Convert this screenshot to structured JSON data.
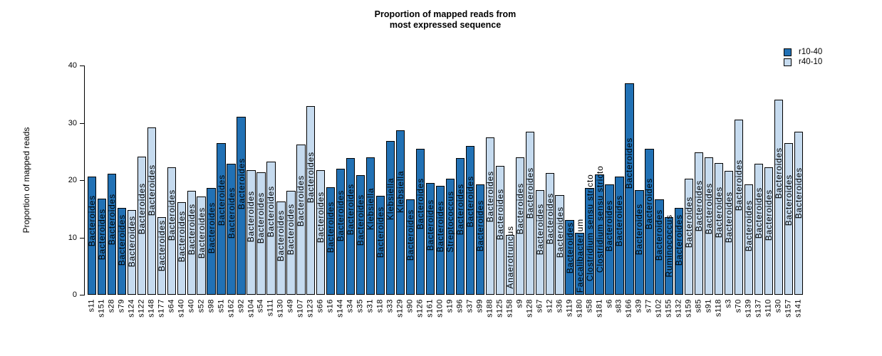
{
  "title": {
    "line1": "Proportion of mapped reads from",
    "line2": "most expressed sequence"
  },
  "y_axis": {
    "label": "Proportion of mapped reads",
    "ticks": [
      0,
      10,
      20,
      30,
      40
    ],
    "max": 40
  },
  "legend": {
    "items": [
      {
        "label": "r10-40",
        "color": "#2171b5"
      },
      {
        "label": "r40-10",
        "color": "#c6dbef"
      }
    ]
  },
  "chart_data": {
    "type": "bar",
    "title": "Proportion of mapped reads from most expressed sequence",
    "xlabel": "",
    "ylabel": "Proportion of mapped reads",
    "ylim": [
      0,
      40
    ],
    "grid": false,
    "legend_position": "top-right",
    "bar_border_color": "#000000",
    "groups": {
      "r10-40": "#2171b5",
      "r40-10": "#c6dbef"
    },
    "bars": [
      {
        "sample": "s11",
        "taxon": "Bacteroides",
        "group": "r10-40",
        "value": 20.6
      },
      {
        "sample": "s151",
        "taxon": "Bacteroides",
        "group": "r10-40",
        "value": 16.8
      },
      {
        "sample": "s28",
        "taxon": "Bacteroides",
        "group": "r10-40",
        "value": 21.1
      },
      {
        "sample": "s79",
        "taxon": "Bacteroides",
        "group": "r10-40",
        "value": 15.1
      },
      {
        "sample": "s124",
        "taxon": "Bacteroides",
        "group": "r40-10",
        "value": 14.8
      },
      {
        "sample": "s122",
        "taxon": "Bacteroides",
        "group": "r40-10",
        "value": 24.1
      },
      {
        "sample": "s148",
        "taxon": "Bacteroides",
        "group": "r40-10",
        "value": 29.2
      },
      {
        "sample": "s177",
        "taxon": "Bacteroides",
        "group": "r40-10",
        "value": 13.6
      },
      {
        "sample": "s64",
        "taxon": "Bacteroides",
        "group": "r40-10",
        "value": 22.3
      },
      {
        "sample": "s140",
        "taxon": "Bacteroides",
        "group": "r40-10",
        "value": 16.1
      },
      {
        "sample": "s40",
        "taxon": "Bacteroides",
        "group": "r40-10",
        "value": 18.2
      },
      {
        "sample": "s52",
        "taxon": "Bacteroides",
        "group": "r40-10",
        "value": 17.1
      },
      {
        "sample": "s98",
        "taxon": "Bacteroides",
        "group": "r10-40",
        "value": 18.6
      },
      {
        "sample": "s51",
        "taxon": "Bacteroides",
        "group": "r10-40",
        "value": 26.5
      },
      {
        "sample": "s162",
        "taxon": "Bacteroides",
        "group": "r10-40",
        "value": 22.8
      },
      {
        "sample": "s92",
        "taxon": "Bacteroides",
        "group": "r10-40",
        "value": 31.0
      },
      {
        "sample": "s104",
        "taxon": "Bacteroides",
        "group": "r40-10",
        "value": 21.8
      },
      {
        "sample": "s54",
        "taxon": "Bacteroides",
        "group": "r40-10",
        "value": 21.4
      },
      {
        "sample": "s111",
        "taxon": "Bacteroides",
        "group": "r40-10",
        "value": 23.2
      },
      {
        "sample": "s130",
        "taxon": "Bacteroides",
        "group": "r40-10",
        "value": 16.3
      },
      {
        "sample": "s49",
        "taxon": "Bacteroides",
        "group": "r40-10",
        "value": 18.2
      },
      {
        "sample": "s107",
        "taxon": "Bacteroides",
        "group": "r40-10",
        "value": 26.2
      },
      {
        "sample": "s123",
        "taxon": "Bacteroides",
        "group": "r40-10",
        "value": 32.9
      },
      {
        "sample": "s66",
        "taxon": "Bacteroides",
        "group": "r40-10",
        "value": 21.7
      },
      {
        "sample": "s16",
        "taxon": "Bacteroides",
        "group": "r10-40",
        "value": 18.8
      },
      {
        "sample": "s144",
        "taxon": "Bacteroides",
        "group": "r10-40",
        "value": 22.0
      },
      {
        "sample": "s34",
        "taxon": "Bacteroides",
        "group": "r10-40",
        "value": 23.9
      },
      {
        "sample": "s35",
        "taxon": "Bacteroides",
        "group": "r10-40",
        "value": 20.9
      },
      {
        "sample": "s31",
        "taxon": "Klebsiella",
        "group": "r10-40",
        "value": 24.0
      },
      {
        "sample": "s18",
        "taxon": "Bacteroides",
        "group": "r10-40",
        "value": 17.3
      },
      {
        "sample": "s33",
        "taxon": "Klebsiella",
        "group": "r10-40",
        "value": 26.8
      },
      {
        "sample": "s129",
        "taxon": "Klebsiella",
        "group": "r10-40",
        "value": 28.7
      },
      {
        "sample": "s90",
        "taxon": "Bacteroides",
        "group": "r10-40",
        "value": 16.6
      },
      {
        "sample": "s126",
        "taxon": "Bacteroides",
        "group": "r10-40",
        "value": 25.5
      },
      {
        "sample": "s161",
        "taxon": "Bacteroides",
        "group": "r10-40",
        "value": 19.5
      },
      {
        "sample": "s100",
        "taxon": "Bacteroides",
        "group": "r10-40",
        "value": 19.0
      },
      {
        "sample": "s19",
        "taxon": "Streptococcus",
        "group": "r10-40",
        "value": 20.3
      },
      {
        "sample": "s96",
        "taxon": "Bacteroides",
        "group": "r10-40",
        "value": 23.9
      },
      {
        "sample": "s37",
        "taxon": "Bacteroides",
        "group": "r10-40",
        "value": 26.0
      },
      {
        "sample": "s99",
        "taxon": "Bacteroides",
        "group": "r10-40",
        "value": 19.2
      },
      {
        "sample": "s188",
        "taxon": "Bacteroides",
        "group": "r40-10",
        "value": 27.4
      },
      {
        "sample": "s125",
        "taxon": "Bacteroides",
        "group": "r40-10",
        "value": 22.5
      },
      {
        "sample": "s158",
        "taxon": "Anaerotruncus",
        "group": "r40-10",
        "value": 10.4
      },
      {
        "sample": "s9",
        "taxon": "Bacteroides",
        "group": "r40-10",
        "value": 24.0
      },
      {
        "sample": "s128",
        "taxon": "Bacteroides",
        "group": "r40-10",
        "value": 28.5
      },
      {
        "sample": "s67",
        "taxon": "Bacteroides",
        "group": "r40-10",
        "value": 18.3
      },
      {
        "sample": "s12",
        "taxon": "Bacteroides",
        "group": "r40-10",
        "value": 21.3
      },
      {
        "sample": "s36",
        "taxon": "Bacteroides",
        "group": "r40-10",
        "value": 17.4
      },
      {
        "sample": "s119",
        "taxon": "Bacteroides",
        "group": "r10-40",
        "value": 13.0
      },
      {
        "sample": "s180",
        "taxon": "Faecalibacterium",
        "group": "r10-40",
        "value": 10.8
      },
      {
        "sample": "s58",
        "taxon": "Clostridium sensu stricto",
        "group": "r10-40",
        "value": 18.6
      },
      {
        "sample": "s181",
        "taxon": "Clostridium sensu stricto",
        "group": "r10-40",
        "value": 21.0
      },
      {
        "sample": "s6",
        "taxon": "Bacteroides",
        "group": "r10-40",
        "value": 19.3
      },
      {
        "sample": "s83",
        "taxon": "Bacteroides",
        "group": "r10-40",
        "value": 20.6
      },
      {
        "sample": "s166",
        "taxon": "Bacteroides",
        "group": "r10-40",
        "value": 36.9
      },
      {
        "sample": "s39",
        "taxon": "Bacteroides",
        "group": "r10-40",
        "value": 18.3
      },
      {
        "sample": "s77",
        "taxon": "Bacteroides",
        "group": "r10-40",
        "value": 25.5
      },
      {
        "sample": "s102",
        "taxon": "Bacteroides",
        "group": "r10-40",
        "value": 16.6
      },
      {
        "sample": "s155",
        "taxon": "Ruminococcus",
        "group": "r10-40",
        "value": 13.6
      },
      {
        "sample": "s132",
        "taxon": "Bacteroides",
        "group": "r10-40",
        "value": 15.2
      },
      {
        "sample": "s159",
        "taxon": "Bacteroides",
        "group": "r40-10",
        "value": 20.3
      },
      {
        "sample": "s85",
        "taxon": "Bacteroides",
        "group": "r40-10",
        "value": 24.8
      },
      {
        "sample": "s91",
        "taxon": "Bacteroides",
        "group": "r40-10",
        "value": 24.0
      },
      {
        "sample": "s118",
        "taxon": "Bacteroides",
        "group": "r40-10",
        "value": 23.0
      },
      {
        "sample": "s3",
        "taxon": "Bacteroides",
        "group": "r40-10",
        "value": 21.6
      },
      {
        "sample": "s70",
        "taxon": "Bacteroides",
        "group": "r40-10",
        "value": 30.6
      },
      {
        "sample": "s139",
        "taxon": "Bacteroides",
        "group": "r40-10",
        "value": 19.2
      },
      {
        "sample": "s137",
        "taxon": "Bacteroides",
        "group": "r40-10",
        "value": 22.8
      },
      {
        "sample": "s110",
        "taxon": "Bacteroides",
        "group": "r40-10",
        "value": 22.3
      },
      {
        "sample": "s30",
        "taxon": "Bacteroides",
        "group": "r40-10",
        "value": 34.1
      },
      {
        "sample": "s157",
        "taxon": "Bacteroides",
        "group": "r40-10",
        "value": 26.4
      },
      {
        "sample": "s141",
        "taxon": "Bacteroides",
        "group": "r40-10",
        "value": 28.4
      }
    ]
  }
}
